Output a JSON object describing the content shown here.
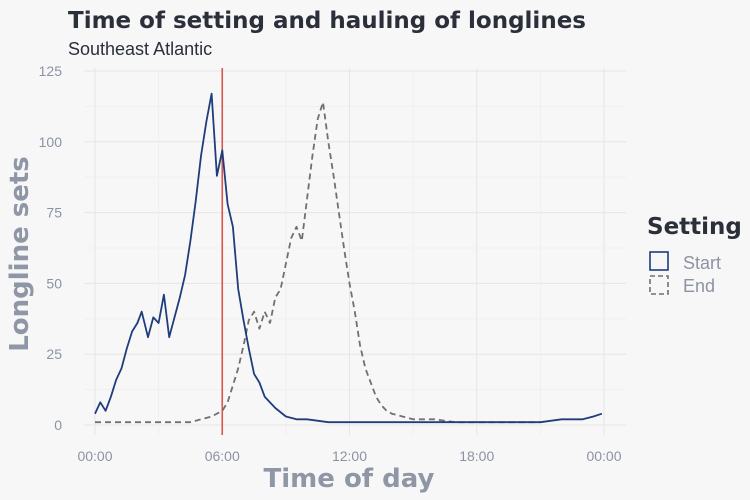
{
  "chart_data": {
    "type": "line",
    "title": "Time of setting and hauling of longlines",
    "subtitle": "Southeast Atlantic",
    "xlabel": "Time of day",
    "ylabel": "Longline sets",
    "x_unit": "hours",
    "xlim": [
      0,
      24
    ],
    "ylim": [
      0,
      125
    ],
    "x_ticks": [
      0,
      6,
      12,
      18,
      24
    ],
    "x_tick_labels": [
      "00:00",
      "06:00",
      "12:00",
      "18:00",
      "00:00"
    ],
    "y_ticks": [
      0,
      25,
      50,
      75,
      100,
      125
    ],
    "y_tick_labels": [
      "0",
      "25",
      "50",
      "75",
      "100",
      "125"
    ],
    "grid": true,
    "legend": {
      "title": "Setting",
      "position": "right",
      "entries": [
        {
          "label": "Start",
          "color": "#1f3d7a",
          "dash": "solid"
        },
        {
          "label": "End",
          "color": "#707070",
          "dash": "dashed"
        }
      ]
    },
    "vline": {
      "x": 6,
      "color": "#d9574f"
    },
    "series": [
      {
        "name": "Start",
        "color": "#1f3d7a",
        "dash": "solid",
        "x": [
          0,
          0.25,
          0.5,
          0.75,
          1.0,
          1.25,
          1.5,
          1.75,
          2.0,
          2.2,
          2.5,
          2.75,
          3.0,
          3.25,
          3.5,
          3.75,
          4.0,
          4.25,
          4.5,
          4.75,
          5.0,
          5.25,
          5.5,
          5.75,
          6.0,
          6.25,
          6.5,
          6.75,
          7.0,
          7.25,
          7.5,
          7.75,
          8.0,
          8.5,
          9.0,
          9.5,
          10.0,
          11.0,
          12.0,
          13.0,
          14.0,
          15.0,
          16.0,
          17.0,
          18.0,
          19.0,
          20.0,
          21.0,
          22.0,
          23.0,
          23.5,
          23.9
        ],
        "values": [
          4,
          8,
          5,
          10,
          16,
          20,
          27,
          33,
          36,
          40,
          31,
          38,
          36,
          46,
          31,
          38,
          45,
          53,
          65,
          79,
          95,
          107,
          117,
          88,
          97,
          78,
          70,
          48,
          37,
          27,
          18,
          15,
          10,
          6,
          3,
          2,
          2,
          1,
          1,
          1,
          1,
          1,
          1,
          1,
          1,
          1,
          1,
          1,
          2,
          2,
          3,
          4
        ]
      },
      {
        "name": "End",
        "color": "#707070",
        "dash": "dashed",
        "x": [
          0,
          0.5,
          1.0,
          2.0,
          3.0,
          4.0,
          4.5,
          5.0,
          5.5,
          6.0,
          6.25,
          6.5,
          6.75,
          7.0,
          7.25,
          7.5,
          7.75,
          8.0,
          8.25,
          8.5,
          8.75,
          9.0,
          9.25,
          9.5,
          9.75,
          10.0,
          10.25,
          10.5,
          10.75,
          11.0,
          11.25,
          11.5,
          11.75,
          12.0,
          12.25,
          12.5,
          12.75,
          13.0,
          13.25,
          13.5,
          13.75,
          14.0,
          14.5,
          15.0,
          15.5,
          16.0,
          17.0,
          18.0,
          19.0,
          20.0,
          21.0
        ],
        "values": [
          1,
          1,
          1,
          1,
          1,
          1,
          1,
          2,
          3,
          5,
          8,
          14,
          20,
          28,
          37,
          40,
          34,
          40,
          36,
          45,
          48,
          57,
          66,
          70,
          65,
          80,
          95,
          108,
          114,
          100,
          88,
          75,
          62,
          50,
          40,
          28,
          20,
          15,
          10,
          7,
          5,
          4,
          3,
          2,
          2,
          2,
          1,
          1,
          1,
          1,
          1
        ]
      }
    ]
  }
}
